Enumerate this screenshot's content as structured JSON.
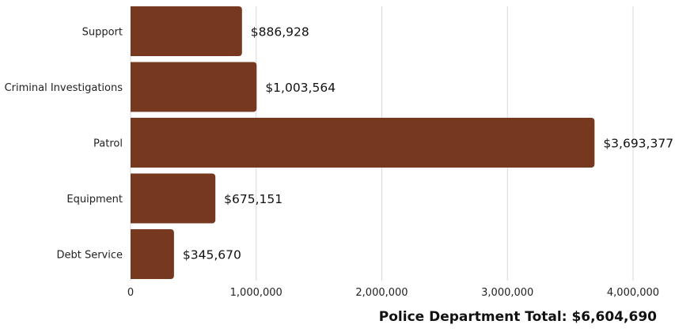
{
  "chart_data": {
    "type": "bar",
    "orientation": "horizontal",
    "categories": [
      "Support",
      "Criminal Investigations",
      "Patrol",
      "Equipment",
      "Debt Service"
    ],
    "values": [
      886928,
      1003564,
      3693377,
      675151,
      345670
    ],
    "data_labels": [
      "$886,928",
      "$1,003,564",
      "$3,693,377",
      "$675,151",
      "$345,670"
    ],
    "x_ticks": [
      0,
      1000000,
      2000000,
      3000000,
      4000000
    ],
    "x_tick_labels": [
      "0",
      "1,000,000",
      "2,000,000",
      "3,000,000",
      "4,000,000"
    ],
    "xlim": [
      0,
      4250000
    ],
    "title": "",
    "xlabel": "",
    "ylabel": "",
    "grid": "vertical",
    "bar_color": "#76391F",
    "grid_color": "#D9D9D9"
  },
  "footer": {
    "total_label": "Police Department Total: $6,604,690"
  }
}
